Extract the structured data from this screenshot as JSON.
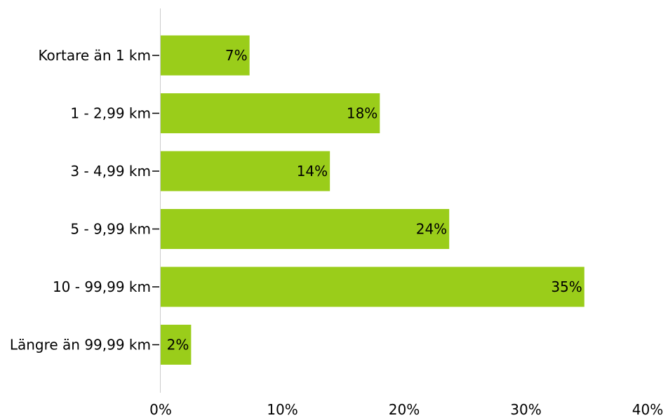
{
  "chart_data": {
    "type": "bar",
    "orientation": "horizontal",
    "categories": [
      "Kortare än 1 km",
      "1 - 2,99 km",
      "3 - 4,99 km",
      "5 - 9,99 km",
      "10 - 99,99 km",
      "Längre än 99,99 km"
    ],
    "values": [
      7.3,
      18,
      13.9,
      23.7,
      34.8,
      2.5
    ],
    "data_labels": [
      "7%",
      "18%",
      "14%",
      "24%",
      "35%",
      "2%"
    ],
    "x_ticks": [
      {
        "value": 0,
        "label": "0%"
      },
      {
        "value": 10,
        "label": "10%"
      },
      {
        "value": 20,
        "label": "20%"
      },
      {
        "value": 30,
        "label": "30%"
      },
      {
        "value": 40,
        "label": "40%"
      }
    ],
    "xlim": [
      0,
      40
    ],
    "title": "",
    "xlabel": "",
    "ylabel": "",
    "grid": false,
    "legend": "none",
    "bar_color": "#9ACD1A",
    "axis_color": "#cccccc",
    "tick_mark_color": "#000000"
  }
}
